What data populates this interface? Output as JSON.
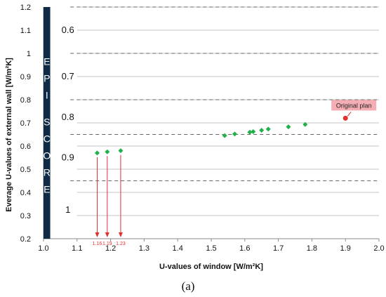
{
  "chart_data": {
    "type": "scatter",
    "xlabel": "U-values of window [W/m²K]",
    "ylabel": "Everage U-values of external wall [W/m²K]",
    "xlim": [
      1.0,
      2.0
    ],
    "ylim": [
      0.2,
      1.2
    ],
    "x_ticks": [
      "1.0",
      "1.1",
      "1.2",
      "1.3",
      "1.4",
      "1.5",
      "1.6",
      "1.7",
      "1.8",
      "1.9",
      "2.0"
    ],
    "y_ticks": [
      "0.2",
      "0.3",
      "0.4",
      "0.5",
      "0.6",
      "0.7",
      "0.8",
      "0.9",
      "1",
      "1.1",
      "1.2"
    ],
    "grid": true,
    "dashed_lines_y": [
      1.2,
      1.0,
      0.8,
      0.65,
      0.45
    ],
    "epi_score_label": "EPI SCORE",
    "score_bands": [
      {
        "label": "0.6",
        "y_from": 1.0,
        "y_to": 1.2,
        "color": "#f0f0f0"
      },
      {
        "label": "0.7",
        "y_from": 0.8,
        "y_to": 1.0,
        "color": "#dcdcdc"
      },
      {
        "label": "0.8",
        "y_from": 0.65,
        "y_to": 0.8,
        "color": "#c8c8c8"
      },
      {
        "label": "0.9",
        "y_from": 0.45,
        "y_to": 0.65,
        "color": "#a8a8a8"
      },
      {
        "label": "1",
        "y_from": 0.2,
        "y_to": 0.45,
        "color": "#8a8a8a"
      }
    ],
    "series": [
      {
        "marker_color": "#22b04a",
        "points": [
          {
            "x": 1.16,
            "y": 0.57
          },
          {
            "x": 1.19,
            "y": 0.575
          },
          {
            "x": 1.23,
            "y": 0.58
          },
          {
            "x": 1.54,
            "y": 0.645
          },
          {
            "x": 1.57,
            "y": 0.652
          },
          {
            "x": 1.615,
            "y": 0.66
          },
          {
            "x": 1.625,
            "y": 0.662
          },
          {
            "x": 1.65,
            "y": 0.668
          },
          {
            "x": 1.67,
            "y": 0.673
          },
          {
            "x": 1.73,
            "y": 0.683
          },
          {
            "x": 1.78,
            "y": 0.693
          }
        ]
      }
    ],
    "original_plan": {
      "x": 1.9,
      "y": 0.72,
      "label": "Original plan",
      "color": "#e03030",
      "label_bg": "#f4aeb4"
    },
    "arrow_annotations": [
      {
        "x": 1.16,
        "label": "1.16"
      },
      {
        "x": 1.19,
        "label": "1.19"
      },
      {
        "x": 1.23,
        "label": "1.23"
      }
    ]
  },
  "caption": "(a)"
}
